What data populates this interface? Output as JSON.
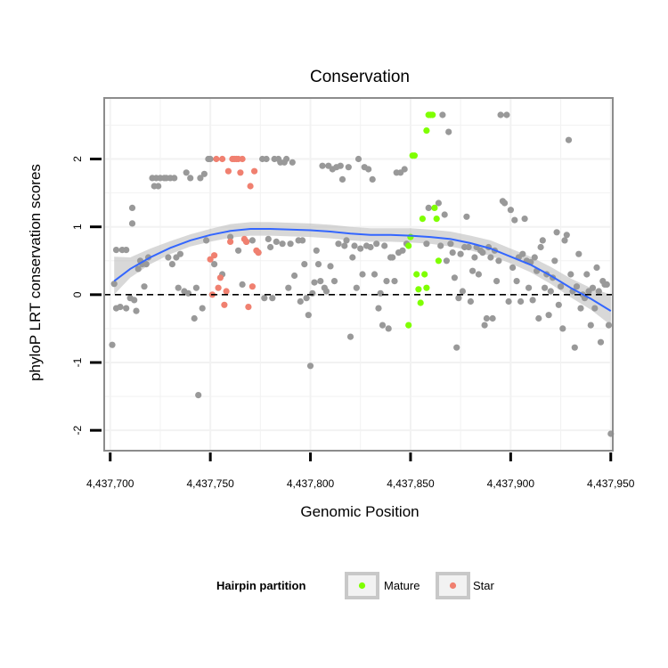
{
  "chart_data": {
    "type": "scatter",
    "title": "Conservation",
    "xlabel": "Genomic Position",
    "ylabel": "phyloP LRT conservation scores",
    "xlim": [
      4437697,
      4437951
    ],
    "ylim": [
      -2.3,
      2.9
    ],
    "x_ticks": [
      {
        "value": 4437700,
        "label": "4,437,700"
      },
      {
        "value": 4437750,
        "label": "4,437,750"
      },
      {
        "value": 4437800,
        "label": "4,437,800"
      },
      {
        "value": 4437850,
        "label": "4,437,850"
      },
      {
        "value": 4437900,
        "label": "4,437,900"
      },
      {
        "value": 4437950,
        "label": "4,437,950"
      }
    ],
    "y_ticks": [
      {
        "value": -2,
        "label": "-2"
      },
      {
        "value": -1,
        "label": "-1"
      },
      {
        "value": 0,
        "label": "0"
      },
      {
        "value": 1,
        "label": "1"
      },
      {
        "value": 2,
        "label": "2"
      }
    ],
    "reference_line": {
      "y": 0,
      "style": "dashed"
    },
    "grid": true,
    "legend": {
      "title": "Hairpin partition",
      "position": "bottom",
      "entries": [
        {
          "name": "Mature",
          "color": "#7fff00"
        },
        {
          "name": "Star",
          "color": "#f08070"
        }
      ]
    },
    "colors": {
      "other": "#999999",
      "Mature": "#7fff00",
      "Star": "#f08070",
      "smooth": "#3366ff",
      "ribbon": "#bebebe",
      "panel_border": "#8c8c8c",
      "grid": "#f2f2f2"
    },
    "series": [
      {
        "name": "Other",
        "points": [
          [
            4437701,
            -0.74
          ],
          [
            4437702,
            0.16
          ],
          [
            4437703,
            0.66
          ],
          [
            4437703,
            -0.2
          ],
          [
            4437705,
            -0.18
          ],
          [
            4437706,
            0.66
          ],
          [
            4437708,
            0.66
          ],
          [
            4437708,
            -0.2
          ],
          [
            4437710,
            -0.05
          ],
          [
            4437711,
            1.05
          ],
          [
            4437711,
            1.28
          ],
          [
            4437712,
            -0.08
          ],
          [
            4437713,
            -0.24
          ],
          [
            4437714,
            0.38
          ],
          [
            4437715,
            0.5
          ],
          [
            4437716,
            0.45
          ],
          [
            4437717,
            0.12
          ],
          [
            4437718,
            0.45
          ],
          [
            4437719,
            0.55
          ],
          [
            4437721,
            1.72
          ],
          [
            4437722,
            1.6
          ],
          [
            4437723,
            1.72
          ],
          [
            4437724,
            1.6
          ],
          [
            4437725,
            1.72
          ],
          [
            4437727,
            1.72
          ],
          [
            4437728,
            1.72
          ],
          [
            4437729,
            0.55
          ],
          [
            4437730,
            1.72
          ],
          [
            4437731,
            0.45
          ],
          [
            4437732,
            1.72
          ],
          [
            4437733,
            0.55
          ],
          [
            4437734,
            0.1
          ],
          [
            4437735,
            0.6
          ],
          [
            4437737,
            0.05
          ],
          [
            4437738,
            1.8
          ],
          [
            4437739,
            0.02
          ],
          [
            4437740,
            1.72
          ],
          [
            4437742,
            -0.35
          ],
          [
            4437743,
            0.1
          ],
          [
            4437744,
            -1.48
          ],
          [
            4437745,
            1.72
          ],
          [
            4437746,
            -0.2
          ],
          [
            4437747,
            1.78
          ],
          [
            4437748,
            0.8
          ],
          [
            4437749,
            2.0
          ],
          [
            4437750,
            2.0
          ],
          [
            4437752,
            0.45
          ],
          [
            4437756,
            0.3
          ],
          [
            4437760,
            0.85
          ],
          [
            4437764,
            0.65
          ],
          [
            4437766,
            0.15
          ],
          [
            4437768,
            0.78
          ],
          [
            4437771,
            0.8
          ],
          [
            4437774,
            0.62
          ],
          [
            4437776,
            2.0
          ],
          [
            4437777,
            -0.05
          ],
          [
            4437778,
            2.0
          ],
          [
            4437779,
            0.82
          ],
          [
            4437780,
            0.7
          ],
          [
            4437781,
            -0.05
          ],
          [
            4437782,
            2.0
          ],
          [
            4437783,
            0.78
          ],
          [
            4437784,
            2.0
          ],
          [
            4437785,
            1.95
          ],
          [
            4437786,
            0.75
          ],
          [
            4437787,
            1.95
          ],
          [
            4437788,
            2.0
          ],
          [
            4437789,
            0.1
          ],
          [
            4437790,
            0.75
          ],
          [
            4437791,
            1.95
          ],
          [
            4437792,
            0.28
          ],
          [
            4437794,
            0.8
          ],
          [
            4437795,
            -0.1
          ],
          [
            4437796,
            0.8
          ],
          [
            4437797,
            0.45
          ],
          [
            4437798,
            -0.05
          ],
          [
            4437799,
            -0.3
          ],
          [
            4437800,
            -1.05
          ],
          [
            4437801,
            0.02
          ],
          [
            4437802,
            0.18
          ],
          [
            4437803,
            0.65
          ],
          [
            4437804,
            0.45
          ],
          [
            4437805,
            0.2
          ],
          [
            4437806,
            1.9
          ],
          [
            4437807,
            0.1
          ],
          [
            4437808,
            0.05
          ],
          [
            4437809,
            1.9
          ],
          [
            4437810,
            0.42
          ],
          [
            4437811,
            1.85
          ],
          [
            4437812,
            0.2
          ],
          [
            4437813,
            1.88
          ],
          [
            4437814,
            0.75
          ],
          [
            4437815,
            1.9
          ],
          [
            4437816,
            1.7
          ],
          [
            4437817,
            0.72
          ],
          [
            4437818,
            0.8
          ],
          [
            4437819,
            1.88
          ],
          [
            4437820,
            -0.62
          ],
          [
            4437821,
            0.55
          ],
          [
            4437822,
            0.72
          ],
          [
            4437823,
            0.1
          ],
          [
            4437824,
            2.0
          ],
          [
            4437825,
            0.68
          ],
          [
            4437826,
            0.3
          ],
          [
            4437827,
            1.88
          ],
          [
            4437828,
            0.72
          ],
          [
            4437829,
            1.85
          ],
          [
            4437830,
            0.7
          ],
          [
            4437831,
            1.7
          ],
          [
            4437832,
            0.3
          ],
          [
            4437833,
            0.75
          ],
          [
            4437834,
            -0.2
          ],
          [
            4437835,
            0.02
          ],
          [
            4437836,
            -0.45
          ],
          [
            4437837,
            0.72
          ],
          [
            4437838,
            0.2
          ],
          [
            4437839,
            -0.5
          ],
          [
            4437840,
            0.55
          ],
          [
            4437841,
            0.55
          ],
          [
            4437842,
            0.2
          ],
          [
            4437843,
            1.8
          ],
          [
            4437844,
            0.62
          ],
          [
            4437845,
            1.8
          ],
          [
            4437846,
            0.65
          ],
          [
            4437847,
            1.85
          ],
          [
            4437848,
            0.75
          ],
          [
            4437858,
            0.75
          ],
          [
            4437859,
            1.28
          ],
          [
            4437864,
            1.35
          ],
          [
            4437865,
            0.72
          ],
          [
            4437866,
            2.65
          ],
          [
            4437867,
            1.18
          ],
          [
            4437868,
            0.5
          ],
          [
            4437869,
            2.4
          ],
          [
            4437870,
            0.75
          ],
          [
            4437871,
            0.62
          ],
          [
            4437872,
            0.25
          ],
          [
            4437873,
            -0.78
          ],
          [
            4437874,
            -0.05
          ],
          [
            4437875,
            0.6
          ],
          [
            4437876,
            0.05
          ],
          [
            4437877,
            0.7
          ],
          [
            4437878,
            1.15
          ],
          [
            4437879,
            0.7
          ],
          [
            4437880,
            -0.1
          ],
          [
            4437881,
            0.35
          ],
          [
            4437882,
            0.55
          ],
          [
            4437883,
            0.7
          ],
          [
            4437884,
            0.3
          ],
          [
            4437885,
            0.65
          ],
          [
            4437886,
            0.62
          ],
          [
            4437887,
            -0.45
          ],
          [
            4437888,
            -0.35
          ],
          [
            4437889,
            0.7
          ],
          [
            4437890,
            0.55
          ],
          [
            4437891,
            -0.35
          ],
          [
            4437892,
            0.65
          ],
          [
            4437893,
            0.2
          ],
          [
            4437894,
            0.5
          ],
          [
            4437895,
            2.65
          ],
          [
            4437896,
            1.38
          ],
          [
            4437897,
            1.35
          ],
          [
            4437898,
            2.65
          ],
          [
            4437899,
            -0.1
          ],
          [
            4437900,
            1.25
          ],
          [
            4437901,
            0.4
          ],
          [
            4437902,
            1.1
          ],
          [
            4437903,
            0.2
          ],
          [
            4437904,
            0.55
          ],
          [
            4437905,
            -0.1
          ],
          [
            4437906,
            0.6
          ],
          [
            4437907,
            1.12
          ],
          [
            4437908,
            0.5
          ],
          [
            4437909,
            0.1
          ],
          [
            4437910,
            0.48
          ],
          [
            4437911,
            -0.08
          ],
          [
            4437912,
            0.55
          ],
          [
            4437913,
            0.35
          ],
          [
            4437914,
            -0.35
          ],
          [
            4437915,
            0.7
          ],
          [
            4437916,
            0.8
          ],
          [
            4437917,
            0.1
          ],
          [
            4437918,
            0.3
          ],
          [
            4437919,
            -0.3
          ],
          [
            4437920,
            0.05
          ],
          [
            4437921,
            0.25
          ],
          [
            4437922,
            0.5
          ],
          [
            4437923,
            0.92
          ],
          [
            4437924,
            -0.15
          ],
          [
            4437925,
            0.12
          ],
          [
            4437926,
            -0.5
          ],
          [
            4437927,
            0.8
          ],
          [
            4437928,
            0.88
          ],
          [
            4437929,
            2.28
          ],
          [
            4437930,
            0.3
          ],
          [
            4437931,
            0.05
          ],
          [
            4437932,
            -0.78
          ],
          [
            4437933,
            0.12
          ],
          [
            4437934,
            0.6
          ],
          [
            4437935,
            -0.2
          ],
          [
            4437936,
            0.0
          ],
          [
            4437937,
            -0.05
          ],
          [
            4437938,
            0.3
          ],
          [
            4437939,
            0.05
          ],
          [
            4437940,
            -0.45
          ],
          [
            4437941,
            0.1
          ],
          [
            4437942,
            -0.2
          ],
          [
            4437943,
            0.4
          ],
          [
            4437944,
            0.05
          ],
          [
            4437945,
            -0.7
          ],
          [
            4437946,
            0.2
          ],
          [
            4437947,
            0.15
          ],
          [
            4437948,
            0.15
          ],
          [
            4437949,
            -0.45
          ],
          [
            4437950,
            -2.05
          ]
        ]
      },
      {
        "name": "Star",
        "points": [
          [
            4437750,
            0.52
          ],
          [
            4437751,
            0.0
          ],
          [
            4437752,
            0.58
          ],
          [
            4437753,
            2.0
          ],
          [
            4437754,
            0.1
          ],
          [
            4437755,
            0.25
          ],
          [
            4437756,
            2.0
          ],
          [
            4437757,
            -0.15
          ],
          [
            4437758,
            0.05
          ],
          [
            4437759,
            1.82
          ],
          [
            4437760,
            0.78
          ],
          [
            4437761,
            2.0
          ],
          [
            4437762,
            2.0
          ],
          [
            4437763,
            2.0
          ],
          [
            4437764,
            2.0
          ],
          [
            4437765,
            1.8
          ],
          [
            4437766,
            2.0
          ],
          [
            4437767,
            0.82
          ],
          [
            4437768,
            0.78
          ],
          [
            4437769,
            -0.18
          ],
          [
            4437770,
            1.6
          ],
          [
            4437771,
            0.12
          ],
          [
            4437772,
            1.82
          ],
          [
            4437773,
            0.65
          ],
          [
            4437774,
            0.62
          ]
        ]
      },
      {
        "name": "Mature",
        "points": [
          [
            4437849,
            0.72
          ],
          [
            4437849,
            -0.45
          ],
          [
            4437850,
            0.85
          ],
          [
            4437851,
            2.05
          ],
          [
            4437852,
            2.05
          ],
          [
            4437853,
            0.3
          ],
          [
            4437854,
            0.08
          ],
          [
            4437855,
            -0.12
          ],
          [
            4437856,
            1.12
          ],
          [
            4437857,
            0.3
          ],
          [
            4437858,
            0.1
          ],
          [
            4437858,
            2.42
          ],
          [
            4437859,
            2.65
          ],
          [
            4437860,
            2.65
          ],
          [
            4437861,
            2.65
          ],
          [
            4437862,
            1.28
          ],
          [
            4437863,
            1.12
          ],
          [
            4437864,
            0.5
          ]
        ]
      }
    ],
    "smooth_fit": {
      "method": "loess",
      "x": [
        4437702,
        4437710,
        4437720,
        4437730,
        4437740,
        4437750,
        4437760,
        4437770,
        4437780,
        4437790,
        4437800,
        4437810,
        4437820,
        4437830,
        4437840,
        4437850,
        4437860,
        4437870,
        4437880,
        4437890,
        4437900,
        4437910,
        4437920,
        4437930,
        4437940,
        4437950
      ],
      "y": [
        0.2,
        0.38,
        0.55,
        0.69,
        0.8,
        0.88,
        0.94,
        0.97,
        0.97,
        0.96,
        0.95,
        0.93,
        0.9,
        0.88,
        0.88,
        0.87,
        0.85,
        0.82,
        0.76,
        0.68,
        0.56,
        0.44,
        0.28,
        0.1,
        -0.06,
        -0.24
      ],
      "lower": [
        0.0,
        0.25,
        0.45,
        0.6,
        0.71,
        0.78,
        0.84,
        0.87,
        0.87,
        0.86,
        0.85,
        0.83,
        0.8,
        0.78,
        0.78,
        0.77,
        0.75,
        0.71,
        0.65,
        0.57,
        0.46,
        0.33,
        0.16,
        -0.04,
        -0.22,
        -0.45
      ],
      "upper": [
        0.56,
        0.55,
        0.68,
        0.79,
        0.89,
        0.97,
        1.04,
        1.07,
        1.07,
        1.06,
        1.05,
        1.03,
        1.0,
        0.98,
        0.98,
        0.98,
        0.96,
        0.93,
        0.87,
        0.8,
        0.68,
        0.56,
        0.41,
        0.24,
        0.1,
        0.0
      ]
    }
  }
}
